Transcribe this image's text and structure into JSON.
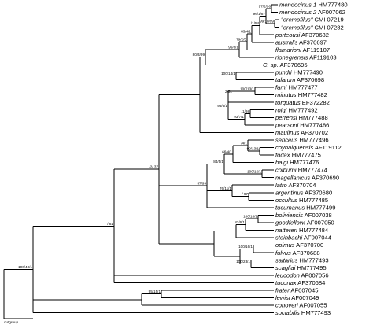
{
  "outgroup_label": "outgroup",
  "taxa": [
    {
      "italic": "mendocinus 1",
      "acc": "HM777480"
    },
    {
      "italic": "mendocinus 2",
      "acc": "AF007062"
    },
    {
      "italic": "\"eremofilus\"",
      "acc": "CMI 07219"
    },
    {
      "italic": "\"eremofilus\"",
      "acc": "CMI 07282"
    },
    {
      "italic": "porteousi",
      "acc": "AF370682"
    },
    {
      "italic": "australis",
      "acc": "AF370697"
    },
    {
      "italic": "flamarioni",
      "acc": "AF119107"
    },
    {
      "italic": "rionegrensis",
      "acc": "AF119103"
    },
    {
      "italic": "C. sp.",
      "acc": "AF370695"
    },
    {
      "italic": "pundti",
      "acc": "HM777490"
    },
    {
      "italic": "talarum",
      "acc": "AF370698"
    },
    {
      "italic": "fami",
      "acc": "HM777477"
    },
    {
      "italic": "minutus",
      "acc": "HM777482"
    },
    {
      "italic": "torquatus",
      "acc": "EF372282"
    },
    {
      "italic": "roigi",
      "acc": "HM777492"
    },
    {
      "italic": "perrensi",
      "acc": "HM777488"
    },
    {
      "italic": "pearsoni",
      "acc": "HM777486"
    },
    {
      "italic": "maulinus",
      "acc": "AF370702"
    },
    {
      "italic": "sericeus",
      "acc": "HM777496"
    },
    {
      "italic": "coyhaiquensis",
      "acc": "AF119112"
    },
    {
      "italic": "fodax",
      "acc": "HM777475"
    },
    {
      "italic": "haigi",
      "acc": "HM777476"
    },
    {
      "italic": "colburni",
      "acc": "HM777474"
    },
    {
      "italic": "magellanicus",
      "acc": "AF370690"
    },
    {
      "italic": "latro",
      "acc": "AF370704"
    },
    {
      "italic": "argentinus",
      "acc": "AF370680"
    },
    {
      "italic": "occultus",
      "acc": "HM777485"
    },
    {
      "italic": "tucumanus",
      "acc": "HM777499"
    },
    {
      "italic": "boliviensis",
      "acc": "AF007038"
    },
    {
      "italic": "goodfellowi",
      "acc": "AF007050"
    },
    {
      "italic": "nattereri",
      "acc": "HM777484"
    },
    {
      "italic": "steinbachi",
      "acc": "AF007044"
    },
    {
      "italic": "opimus",
      "acc": "AF370700"
    },
    {
      "italic": "fulvus",
      "acc": "AF370688"
    },
    {
      "italic": "saltarius",
      "acc": "HM777493"
    },
    {
      "italic": "scagliai",
      "acc": "HM777495"
    },
    {
      "italic": "leucodon",
      "acc": "AF007056"
    },
    {
      "italic": "tuconax",
      "acc": "AF370684"
    },
    {
      "italic": "frater",
      "acc": "AF007045"
    },
    {
      "italic": "lewisi",
      "acc": "AF007049"
    },
    {
      "italic": "conoveri",
      "acc": "AF007055"
    },
    {
      "italic": "sociabilis",
      "acc": "HM777493"
    }
  ],
  "supports": [
    {
      "id": "s_men",
      "text": "97/2/96"
    },
    {
      "id": "s_ere",
      "text": "99/10/99"
    },
    {
      "id": "s_menere",
      "text": "96/1/87"
    },
    {
      "id": "s_por",
      "text": "/1/54"
    },
    {
      "id": "s_aus",
      "text": "83/4/1"
    },
    {
      "id": "s_flam",
      "text": "79/2/5"
    },
    {
      "id": "s_rio",
      "text": "96/8/1"
    },
    {
      "id": "s_csp",
      "text": "80/3/99"
    },
    {
      "id": "s_pun",
      "text": "100/14/1"
    },
    {
      "id": "s_fam",
      "text": "100/13/1"
    },
    {
      "id": "s_min",
      "text": "2/51"
    },
    {
      "id": "s_roi",
      "text": "/1/98"
    },
    {
      "id": "s_per",
      "text": "93/7/1"
    },
    {
      "id": "s_tor",
      "text": "96/6/1"
    },
    {
      "id": "s_cfh",
      "text": "99/13/1"
    },
    {
      "id": "s_ser",
      "text": "/4/1"
    },
    {
      "id": "s_hai",
      "text": "66/4/1"
    },
    {
      "id": "s_col",
      "text": "100/16/1"
    },
    {
      "id": "s_mag",
      "text": "84/5/1"
    },
    {
      "id": "s_arg",
      "text": "/ 97"
    },
    {
      "id": "s_lat",
      "text": "76/11/1"
    },
    {
      "id": "s_mid",
      "text": "37/99"
    },
    {
      "id": "s_bol",
      "text": "100/18/1"
    },
    {
      "id": "s_gn",
      "text": "87/6/1"
    },
    {
      "id": "s_ful",
      "text": "100/16/1"
    },
    {
      "id": "s_sal",
      "text": "100/23/1"
    },
    {
      "id": "s_big",
      "text": "/2/ 37"
    },
    {
      "id": "s_main",
      "text": "/ 81"
    },
    {
      "id": "s_fr",
      "text": "95/15/1"
    },
    {
      "id": "s_root",
      "text": "100/40/1"
    }
  ]
}
